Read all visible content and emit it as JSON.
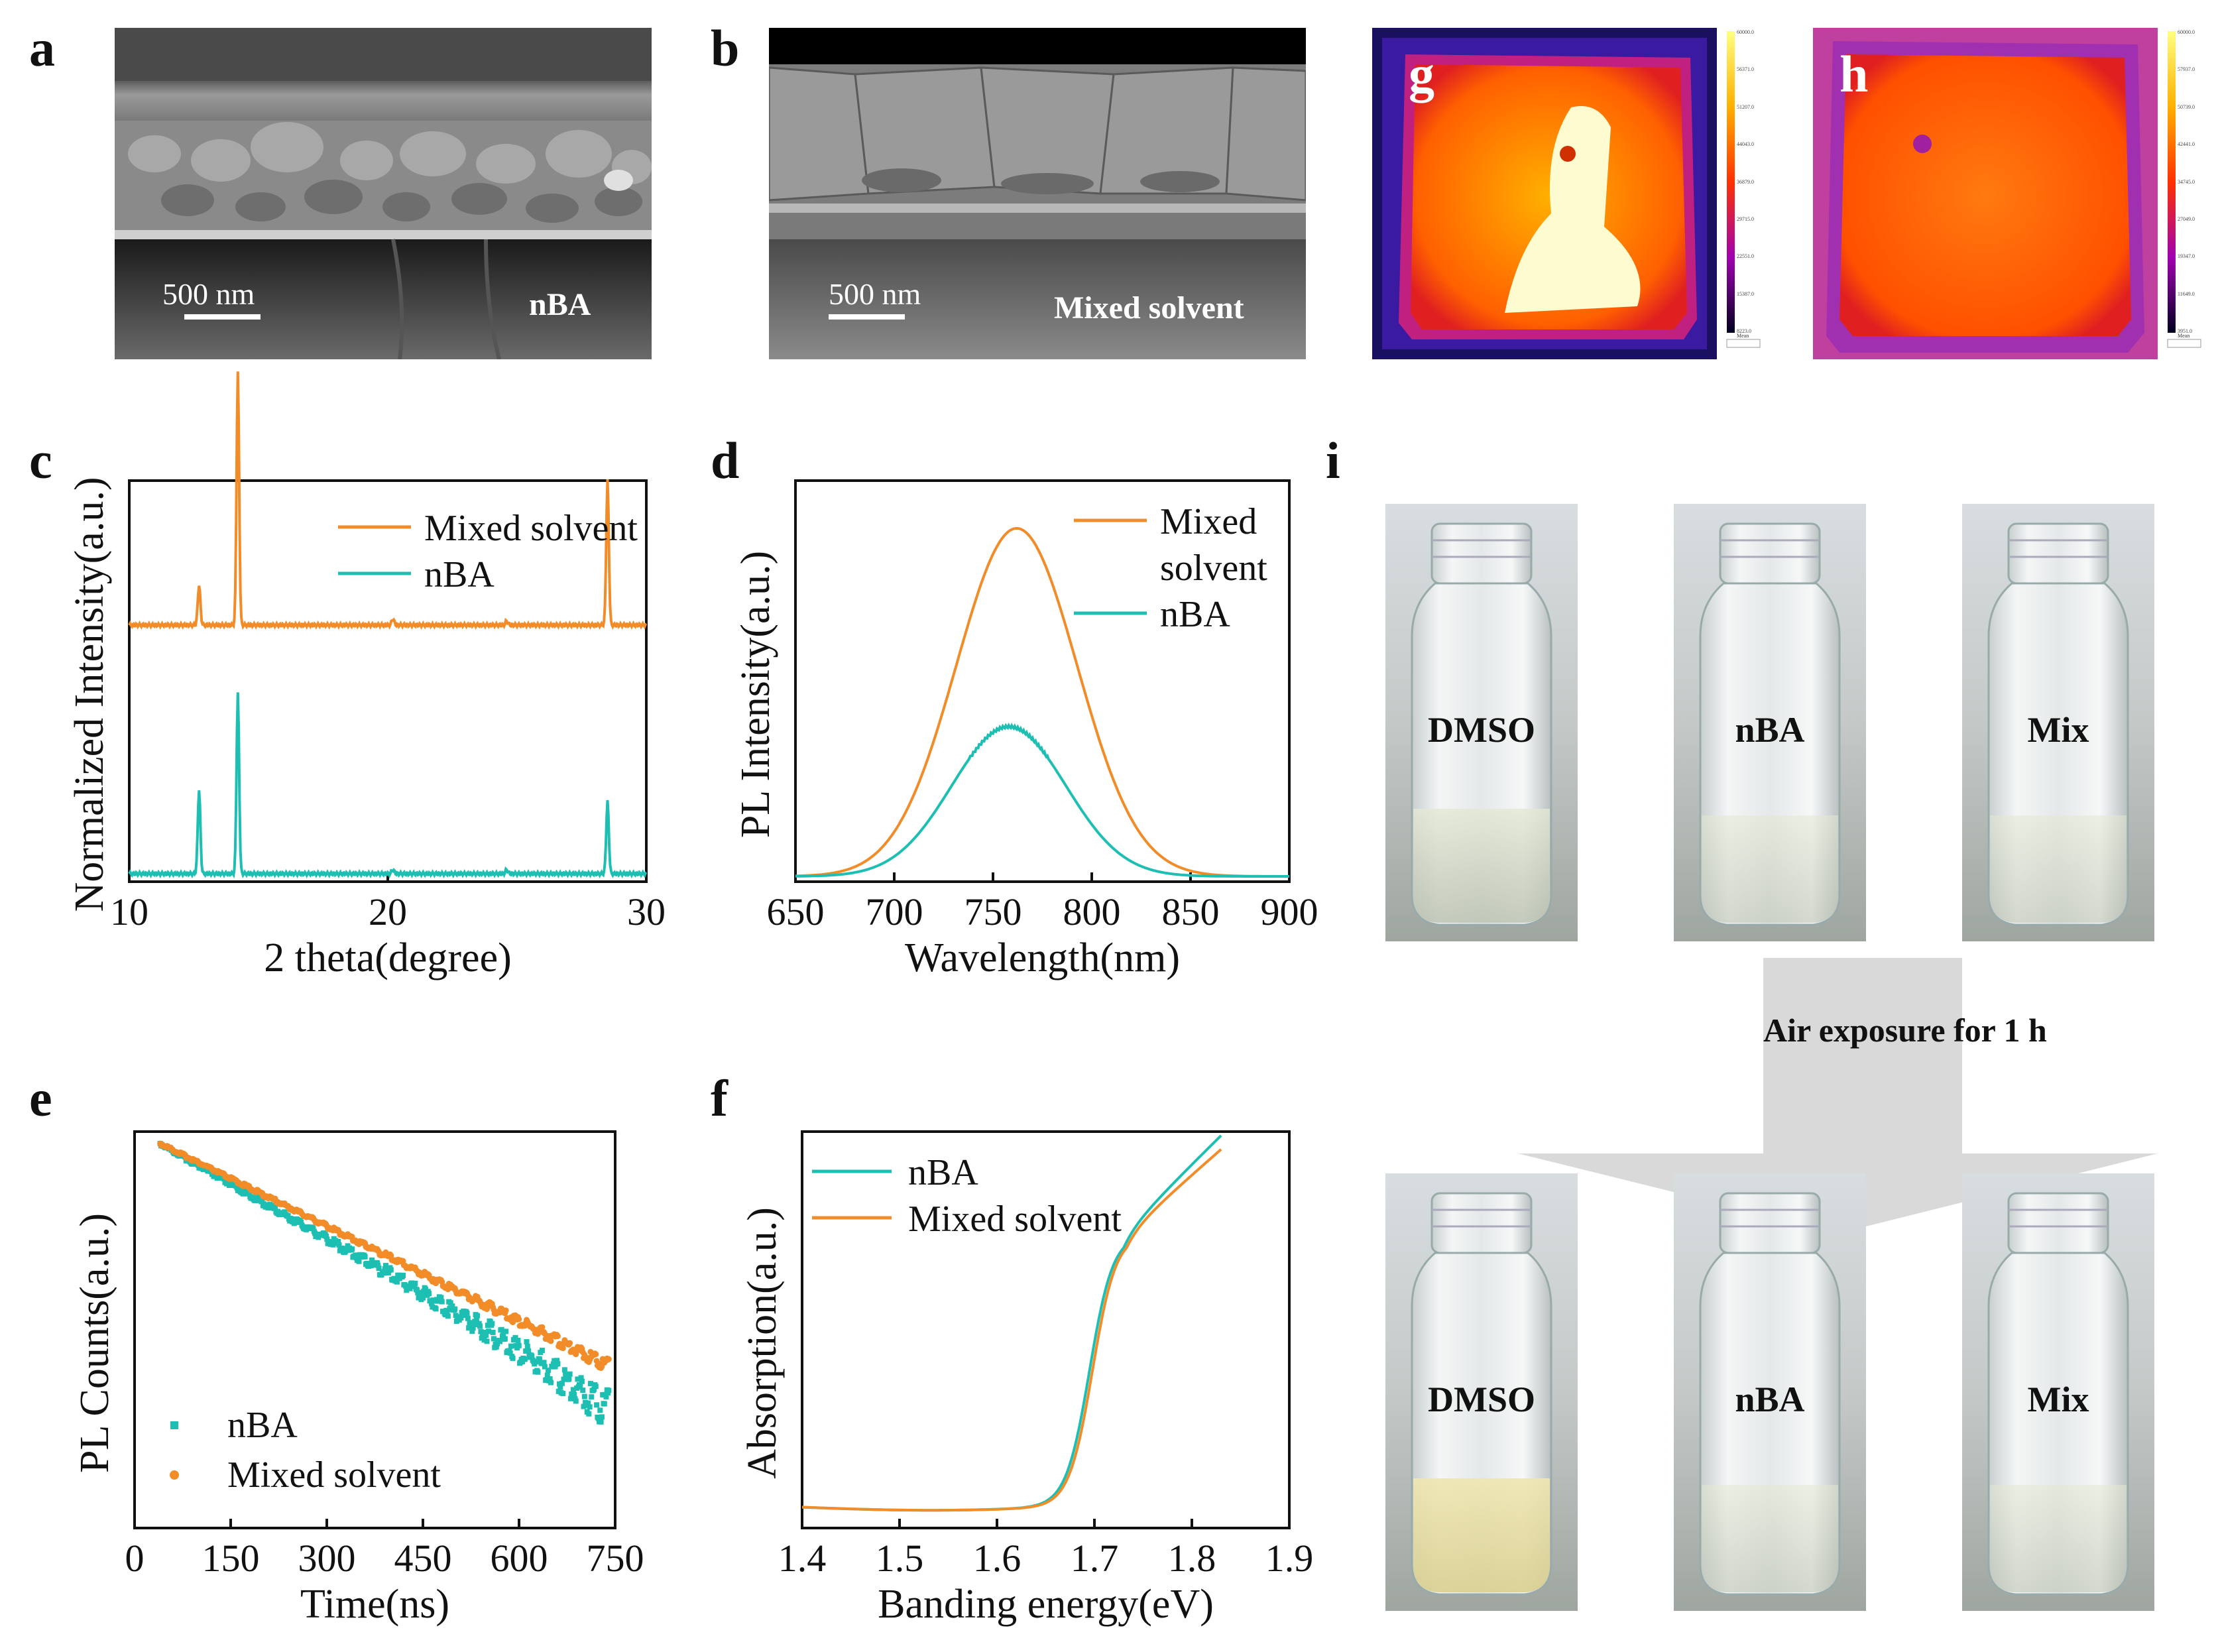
{
  "panels": {
    "a": {
      "letter": "a",
      "sample": "nBA",
      "scalebar": "500 nm"
    },
    "b": {
      "letter": "b",
      "sample": "Mixed solvent",
      "scalebar": "500 nm"
    },
    "g": {
      "letter": "g",
      "mean_label": "Mean",
      "colorbar_ticks": [
        "60000.0",
        "56371.0",
        "51207.0",
        "44043.0",
        "36879.0",
        "29715.0",
        "22551.0",
        "15387.0",
        "8223.0"
      ]
    },
    "h": {
      "letter": "h",
      "mean_label": "Mean",
      "colorbar_ticks": [
        "60000.0",
        "57937.0",
        "50739.0",
        "42441.0",
        "34745.0",
        "27049.0",
        "19347.0",
        "11649.0",
        "3951.0"
      ]
    },
    "i": {
      "letter": "i",
      "before": [
        "DMSO",
        "nBA",
        "Mix"
      ],
      "after": [
        "DMSO",
        "nBA",
        "Mix"
      ],
      "arrow_label": "Air exposure for 1 h"
    }
  },
  "colors": {
    "orange": "#f28c28",
    "teal": "#1cbfb2",
    "arrow": "#d9d9d9"
  },
  "chart_data": [
    {
      "panel": "c",
      "type": "line",
      "title": "",
      "xlabel": "2 theta(degree)",
      "ylabel": "Normalized Intensity(a.u.)",
      "xlim": [
        10,
        30
      ],
      "xticks": [
        10,
        20,
        30
      ],
      "series": [
        {
          "name": "Mixed solvent",
          "color": "#f28c28",
          "offset": 0.62,
          "peaks": [
            [
              12.7,
              0.1
            ],
            [
              14.2,
              0.63
            ],
            [
              20.2,
              0.015
            ],
            [
              24.6,
              0.01
            ],
            [
              28.5,
              0.36
            ]
          ]
        },
        {
          "name": "nBA",
          "color": "#1cbfb2",
          "offset": 0.0,
          "peaks": [
            [
              12.7,
              0.21
            ],
            [
              14.2,
              0.45
            ],
            [
              20.2,
              0.01
            ],
            [
              24.6,
              0.01
            ],
            [
              28.5,
              0.18
            ]
          ]
        }
      ],
      "legend": [
        "Mixed solvent",
        "nBA"
      ]
    },
    {
      "panel": "d",
      "type": "line",
      "title": "",
      "xlabel": "Wavelength(nm)",
      "ylabel": "PL Intensity(a.u.)",
      "xlim": [
        650,
        900
      ],
      "xticks": [
        650,
        700,
        750,
        800,
        850,
        900
      ],
      "series": [
        {
          "name": "Mixed solvent",
          "color": "#f28c28",
          "peak_nm": 762,
          "fwhm_nm": 72,
          "height": 1.0
        },
        {
          "name": "nBA",
          "color": "#1cbfb2",
          "peak_nm": 758,
          "fwhm_nm": 68,
          "height": 0.43
        }
      ],
      "legend": [
        "Mixed",
        "solvent",
        "nBA"
      ]
    },
    {
      "panel": "e",
      "type": "scatter",
      "title": "",
      "xlabel": "Time(ns)",
      "ylabel": "PL Counts(a.u.)",
      "xlim": [
        0,
        750
      ],
      "xticks": [
        0,
        150,
        300,
        450,
        600,
        750
      ],
      "series": [
        {
          "name": "nBA",
          "color": "#1cbfb2",
          "marker": "square",
          "start_ns": 40,
          "end_ns": 740,
          "decay": "fast"
        },
        {
          "name": "Mixed solvent",
          "color": "#f28c28",
          "marker": "circle",
          "start_ns": 40,
          "end_ns": 740,
          "decay": "slow"
        }
      ],
      "legend": [
        "nBA",
        "Mixed solvent"
      ]
    },
    {
      "panel": "f",
      "type": "line",
      "title": "",
      "xlabel": "Banding energy(eV)",
      "ylabel": "Absorption(a.u.)",
      "xlim": [
        1.4,
        1.9
      ],
      "xticks": [
        1.4,
        1.5,
        1.6,
        1.7,
        1.8,
        1.9
      ],
      "series": [
        {
          "name": "nBA",
          "color": "#1cbfb2"
        },
        {
          "name": "Mixed solvent",
          "color": "#f28c28"
        }
      ],
      "legend": [
        "nBA",
        "Mixed solvent"
      ]
    }
  ]
}
